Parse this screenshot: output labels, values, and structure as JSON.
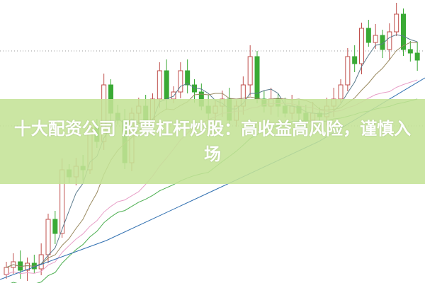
{
  "title": "十大配资公司 股票杠杆炒股：高收益高风险，谨慎入场",
  "colors": {
    "up_candle": "#c0504d",
    "down_candle": "#3aaa35",
    "banner": "#c4e296",
    "ma_short": "#5a7a8c",
    "ma_mid": "#9a8a60",
    "ma_long_pink": "#e8a0c8",
    "ma_green": "#4caf50",
    "ma_blue": "#2f6fb0"
  }
}
